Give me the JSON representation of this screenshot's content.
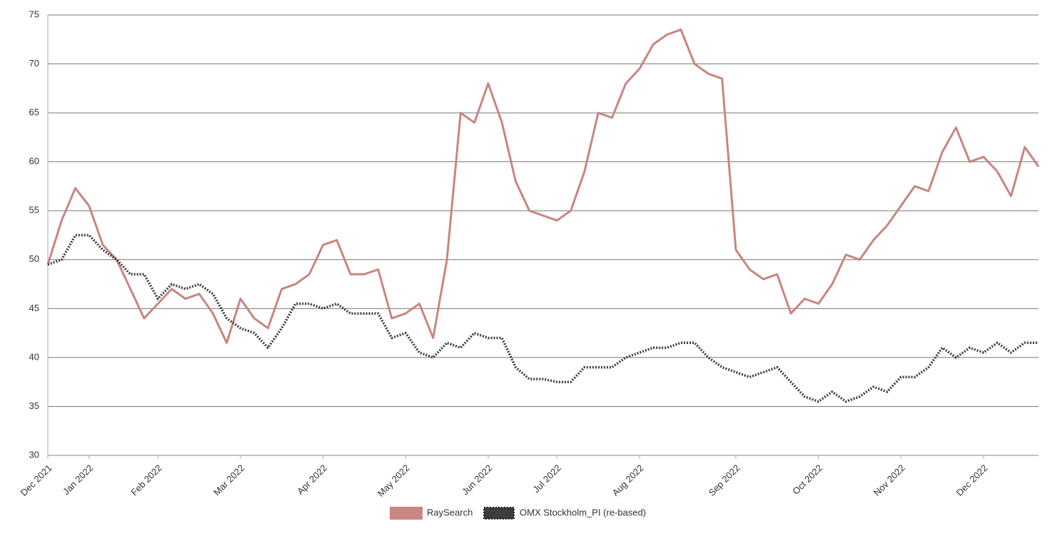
{
  "chart_data": {
    "type": "line",
    "categories": [
      "Dec 2021",
      null,
      null,
      "Jan 2022",
      null,
      null,
      null,
      null,
      "Feb 2022",
      null,
      null,
      null,
      null,
      null,
      "Mar 2022",
      null,
      null,
      null,
      null,
      null,
      "Apr 2022",
      null,
      null,
      null,
      null,
      null,
      "May 2022",
      null,
      null,
      null,
      null,
      null,
      "Jun 2022",
      null,
      null,
      null,
      null,
      "Jul 2022",
      null,
      null,
      null,
      null,
      null,
      "Aug 2022",
      null,
      null,
      null,
      null,
      null,
      null,
      "Sep 2022",
      null,
      null,
      null,
      null,
      null,
      "Oct 2022",
      null,
      null,
      null,
      null,
      null,
      "Nov 2022",
      null,
      null,
      null,
      null,
      null,
      "Dec 2022",
      null,
      null,
      null,
      null
    ],
    "series": [
      {
        "name": "RaySearch",
        "color": "#c9857f",
        "values": [
          49.5,
          54,
          57.3,
          55.5,
          51.5,
          50,
          47,
          44,
          45.5,
          47,
          46,
          46.5,
          44.5,
          41.5,
          46,
          44,
          43,
          47,
          47.5,
          48.5,
          51.5,
          52,
          48.5,
          48.5,
          49,
          44,
          44.5,
          45.5,
          42,
          50,
          65,
          64,
          68,
          64,
          58,
          55,
          54.5,
          54,
          55,
          59,
          65,
          64.5,
          68,
          69.5,
          72,
          73,
          73.5,
          70,
          69,
          68.5,
          51,
          49,
          48,
          48.5,
          44.5,
          46,
          45.5,
          47.5,
          50.5,
          50,
          52,
          53.5,
          55.5,
          57.5,
          57,
          61,
          63.5,
          60,
          60.5,
          59,
          56.5,
          61.5,
          59.5
        ]
      },
      {
        "name": "OMX Stockholm_PI (re-based)",
        "color": "#3d3d40",
        "values": [
          49.5,
          50,
          52.5,
          52.5,
          51,
          50,
          48.5,
          48.5,
          46,
          47.5,
          47,
          47.5,
          46.5,
          44,
          43,
          42.5,
          41,
          43,
          45.5,
          45.5,
          45,
          45.5,
          44.5,
          44.5,
          44.5,
          42,
          42.5,
          40.5,
          40,
          41.5,
          41,
          42.5,
          42,
          42,
          39,
          37.8,
          37.8,
          37.5,
          37.5,
          39,
          39,
          39,
          40,
          40.5,
          41,
          41,
          41.5,
          41.5,
          40,
          39,
          38.5,
          38,
          38.5,
          39,
          37.5,
          36,
          35.5,
          36.5,
          35.5,
          36,
          37,
          36.5,
          38,
          38,
          39,
          41,
          40,
          41,
          40.5,
          41.5,
          40.5,
          41.5,
          41.5
        ]
      }
    ],
    "ylim": [
      30,
      75
    ],
    "yticks": [
      30,
      35,
      40,
      45,
      50,
      55,
      60,
      65,
      70,
      75
    ],
    "grid": true
  }
}
